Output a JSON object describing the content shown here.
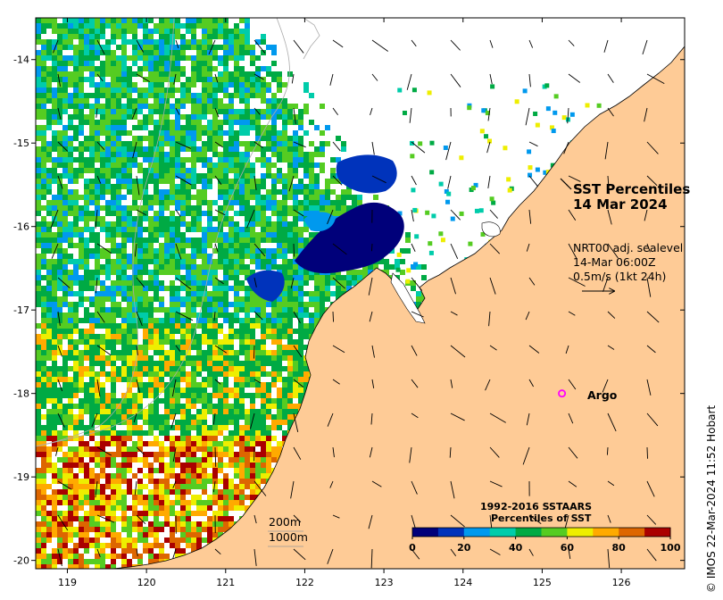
{
  "title": {
    "line1": "SST Percentiles",
    "line2": "14 Mar 2024"
  },
  "current_info": {
    "line1": "NRT00 adj. sealevel",
    "line2": "14-Mar 06:00Z",
    "line3": "0.5m/s (1kt 24h)"
  },
  "depth_contours": [
    "200m",
    "1000m"
  ],
  "argo": {
    "label": "Argo",
    "marker_color": "#ff00ff",
    "lon": 125.25,
    "lat": -18.0
  },
  "axes": {
    "x_ticks": [
      "119",
      "120",
      "121",
      "122",
      "123",
      "124",
      "125",
      "126"
    ],
    "y_ticks": [
      "-14",
      "-15",
      "-16",
      "-17",
      "-18",
      "-19",
      "-20"
    ],
    "lon_range": [
      118.6,
      126.8
    ],
    "lat_range": [
      -20.1,
      -13.5
    ]
  },
  "colorbar": {
    "title_line1": "1992-2016 SSTAARS",
    "title_line2": "Percentiles of SST",
    "tick_labels": [
      "0",
      "20",
      "40",
      "60",
      "80",
      "100"
    ],
    "colors": [
      "#00007a",
      "#0033bb",
      "#0099ee",
      "#00ccaa",
      "#00aa44",
      "#55cc22",
      "#eeee00",
      "#ffaa00",
      "#dd6600",
      "#aa0000"
    ]
  },
  "colors": {
    "land": "#fecb96",
    "ocean_nodata": "#ffffff"
  },
  "copyright": "© IMOS 22-Mar-2024 11:52 Hobart"
}
